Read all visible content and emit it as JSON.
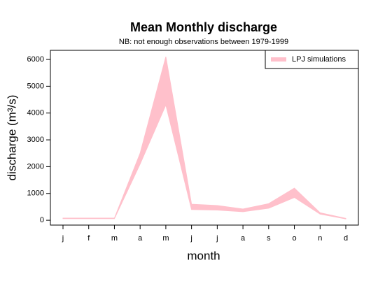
{
  "chart_data": {
    "type": "area",
    "title": "Mean Monthly discharge",
    "subtitle": "NB: not enough observations between 1979-1999",
    "xlabel": "month",
    "ylabel": "discharge (m³/s)",
    "categories": [
      "j",
      "f",
      "m",
      "a",
      "m",
      "j",
      "j",
      "a",
      "s",
      "o",
      "n",
      "d"
    ],
    "series": [
      {
        "name": "LPJ simulations",
        "color": "#ffc0cb",
        "lower": [
          60,
          60,
          60,
          2100,
          4300,
          400,
          380,
          320,
          450,
          850,
          230,
          50
        ],
        "upper": [
          80,
          80,
          80,
          2500,
          6100,
          600,
          550,
          420,
          620,
          1200,
          280,
          70
        ]
      }
    ],
    "ylim": [
      -180,
      6340
    ],
    "yticks": [
      0,
      1000,
      2000,
      3000,
      4000,
      5000,
      6000
    ],
    "legend": "topright"
  }
}
